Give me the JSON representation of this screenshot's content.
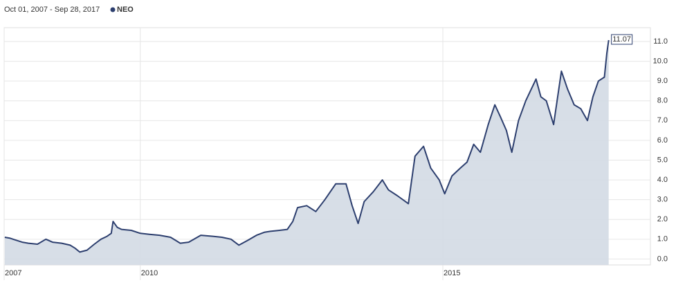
{
  "chart_data": {
    "type": "line",
    "subtitle": "Oct 01, 2007 - Sep 28, 2017",
    "x": [
      2007.76,
      2007.85,
      2007.95,
      2008.05,
      2008.15,
      2008.3,
      2008.44,
      2008.55,
      2008.7,
      2008.84,
      2008.92,
      2009.0,
      2009.12,
      2009.24,
      2009.35,
      2009.45,
      2009.52,
      2009.55,
      2009.62,
      2009.69,
      2009.85,
      2010.0,
      2010.15,
      2010.32,
      2010.5,
      2010.66,
      2010.8,
      2011.0,
      2011.2,
      2011.35,
      2011.5,
      2011.63,
      2011.78,
      2011.92,
      2012.05,
      2012.15,
      2012.3,
      2012.43,
      2012.52,
      2012.6,
      2012.75,
      2012.9,
      2013.05,
      2013.23,
      2013.4,
      2013.5,
      2013.6,
      2013.7,
      2013.85,
      2014.0,
      2014.1,
      2014.25,
      2014.43,
      2014.54,
      2014.68,
      2014.8,
      2014.94,
      2015.03,
      2015.15,
      2015.29,
      2015.4,
      2015.51,
      2015.62,
      2015.75,
      2015.86,
      2015.95,
      2016.05,
      2016.14,
      2016.25,
      2016.37,
      2016.54,
      2016.62,
      2016.71,
      2016.83,
      2016.96,
      2017.06,
      2017.17,
      2017.28,
      2017.39,
      2017.48,
      2017.57,
      2017.67,
      2017.71,
      2017.74
    ],
    "series": [
      {
        "name": "NEO",
        "color": "#2c3e6e",
        "values": [
          1.1,
          1.05,
          0.95,
          0.85,
          0.8,
          0.75,
          1.0,
          0.85,
          0.8,
          0.7,
          0.55,
          0.35,
          0.45,
          0.75,
          1.0,
          1.15,
          1.3,
          1.9,
          1.6,
          1.5,
          1.45,
          1.3,
          1.25,
          1.2,
          1.1,
          0.8,
          0.85,
          1.2,
          1.15,
          1.1,
          1.0,
          0.7,
          0.95,
          1.2,
          1.35,
          1.4,
          1.45,
          1.5,
          1.9,
          2.6,
          2.7,
          2.4,
          3.0,
          3.8,
          3.8,
          2.7,
          1.8,
          2.9,
          3.4,
          4.0,
          3.5,
          3.2,
          2.8,
          5.2,
          5.7,
          4.6,
          4.0,
          3.3,
          4.2,
          4.6,
          4.9,
          5.8,
          5.4,
          6.8,
          7.8,
          7.2,
          6.5,
          5.4,
          7.0,
          8.0,
          9.1,
          8.2,
          8.0,
          6.8,
          9.5,
          8.6,
          7.8,
          7.6,
          7.0,
          8.2,
          9.0,
          9.2,
          10.4,
          11.07
        ]
      }
    ],
    "xlim": [
      2007.75,
      2018.43
    ],
    "xticks": [
      {
        "value": 2007.75,
        "label": "2007"
      },
      2010,
      2015
    ],
    "ylim": [
      -0.3,
      11.7
    ],
    "yticks": [
      {
        "value": 0,
        "label": "0.0"
      },
      {
        "value": 1,
        "label": "1.0"
      },
      {
        "value": 2,
        "label": "2.0"
      },
      {
        "value": 3,
        "label": "3.0"
      },
      {
        "value": 4,
        "label": "4.0"
      },
      {
        "value": 5,
        "label": "5.0"
      },
      {
        "value": 6,
        "label": "6.0"
      },
      {
        "value": 7,
        "label": "7.0"
      },
      {
        "value": 8,
        "label": "8.0"
      },
      {
        "value": 9,
        "label": "9.0"
      },
      {
        "value": 10,
        "label": "10.0"
      },
      {
        "value": 11,
        "label": "11.0"
      }
    ],
    "grid": true
  }
}
